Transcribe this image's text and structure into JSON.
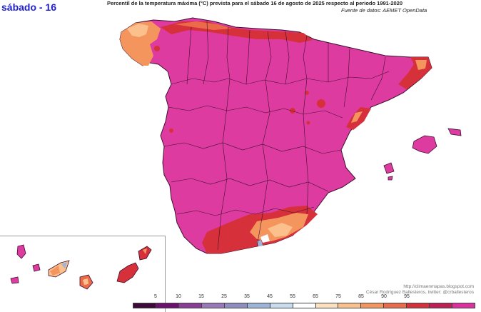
{
  "header": {
    "day_title": "sábado - 16",
    "title": "Percentil de la temperatura máxima (°C) prevista para el sábado 16 de agosto de 2025 respecto al periodo 1991-2020",
    "source": "Fuente de datos: AEMET OpenData"
  },
  "credits": {
    "url": "http://climaenmapas.blogspot.com",
    "author": "César Rodríguez Ballesteros, twitter: @crballesteros"
  },
  "legend": {
    "colors": [
      "#3d0a3a",
      "#6e1070",
      "#8a3d98",
      "#9878b8",
      "#8f8cc0",
      "#9cb4d8",
      "#c8dcef",
      "#ffffff",
      "#fde0c0",
      "#fbc08c",
      "#f5955e",
      "#ea6a4a",
      "#d6303a",
      "#c01f55",
      "#de2f9e"
    ],
    "ticks": [
      "5",
      "10",
      "15",
      "25",
      "35",
      "45",
      "55",
      "65",
      "75",
      "85",
      "90",
      "95"
    ]
  },
  "map": {
    "dominant_color": "#de3ba0",
    "description_colors": {
      "extreme": "#de3ba0",
      "very_high": "#d6303a",
      "high": "#ea6a4a",
      "warm": "#f5955e",
      "mild": "#fbc08c",
      "neutral": "#ffffff",
      "cool": "#9cb4d8"
    }
  }
}
